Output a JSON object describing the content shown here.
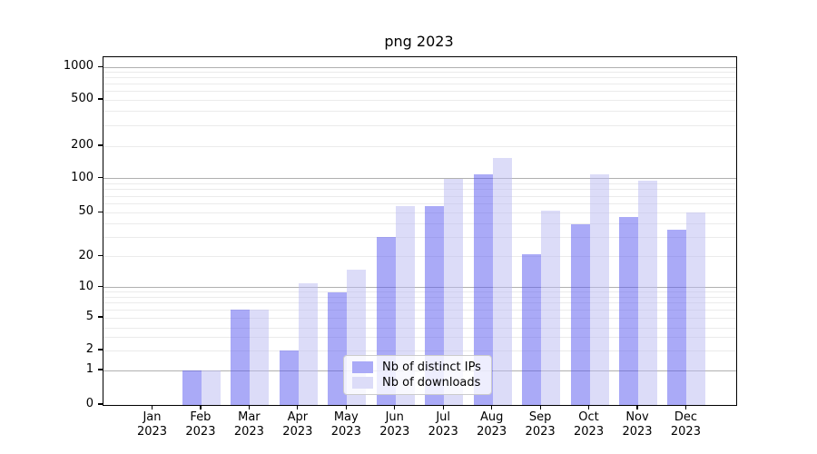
{
  "figure": {
    "title": "png 2023"
  },
  "y_axis": {
    "tick_labels": [
      "0",
      "1",
      "2",
      "5",
      "10",
      "20",
      "50",
      "100",
      "200",
      "500",
      "1000"
    ]
  },
  "x_axis": {
    "months": [
      "Jan",
      "Feb",
      "Mar",
      "Apr",
      "May",
      "Jun",
      "Jul",
      "Aug",
      "Sep",
      "Oct",
      "Nov",
      "Dec"
    ],
    "year": "2023"
  },
  "legend": {
    "items": [
      {
        "label": "Nb of distinct IPs",
        "color": "#aaaaf7"
      },
      {
        "label": "Nb of downloads",
        "color": "#dcdcf8"
      }
    ]
  },
  "chart_data": {
    "type": "bar",
    "title": "png 2023",
    "categories": [
      "Jan 2023",
      "Feb 2023",
      "Mar 2023",
      "Apr 2023",
      "May 2023",
      "Jun 2023",
      "Jul 2023",
      "Aug 2023",
      "Sep 2023",
      "Oct 2023",
      "Nov 2023",
      "Dec 2023"
    ],
    "series": [
      {
        "name": "Nb of distinct IPs",
        "color": "#aaaaf7",
        "values": [
          0,
          1,
          6,
          2,
          9,
          30,
          57,
          110,
          21,
          39,
          46,
          35
        ]
      },
      {
        "name": "Nb of downloads",
        "color": "#dcdcf8",
        "values": [
          0,
          1,
          6,
          11,
          15,
          57,
          100,
          155,
          52,
          110,
          95,
          50
        ]
      }
    ],
    "xlabel": "",
    "ylabel": "",
    "yscale": "symlog",
    "ylim": [
      0,
      1250
    ],
    "y_ticks": [
      0,
      1,
      2,
      5,
      10,
      20,
      50,
      100,
      200,
      500,
      1000
    ],
    "grid": "horizontal major and minor gridlines",
    "legend_position": "lower center"
  }
}
